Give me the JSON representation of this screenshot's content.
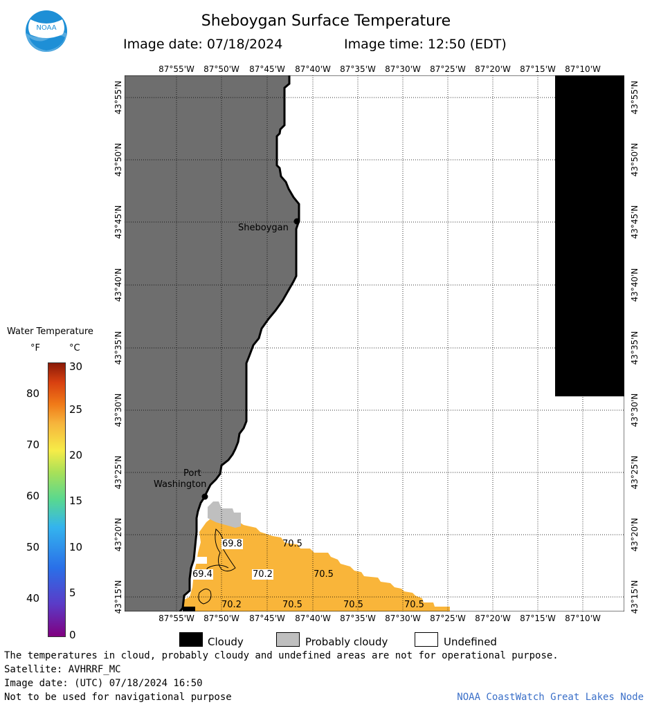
{
  "header": {
    "title": "Sheboygan Surface Temperature",
    "image_date": "Image date: 07/18/2024",
    "image_time": "Image time: 12:50 (EDT)"
  },
  "logo": {
    "text": "NOAA"
  },
  "map": {
    "lon_labels_top": [
      "87°55'W",
      "87°50'W",
      "87°45'W",
      "87°40'W",
      "87°35'W",
      "87°30'W",
      "87°25'W",
      "87°20'W",
      "87°15'W",
      "87°10'W"
    ],
    "lon_labels_bottom": [
      "87°55'W",
      "87°50'W",
      "87°45'W",
      "87°40'W",
      "87°35'W",
      "87°30'W",
      "87°25'W",
      "87°20'W",
      "87°15'W",
      "87°10'W"
    ],
    "lat_labels": [
      "43°55'N",
      "43°50'N",
      "43°45'N",
      "43°40'N",
      "43°35'N",
      "43°30'N",
      "43°25'N",
      "43°20'N",
      "43°15'N"
    ],
    "cities": {
      "sheboygan": "Sheboygan",
      "port_line1": "Port",
      "port_line2": "Washington"
    },
    "temps": [
      "69.8",
      "70.5",
      "69.4",
      "70.2",
      "70.5",
      "70.2",
      "70.5",
      "70.5",
      "70.5"
    ],
    "colors": {
      "land": "#6e6e6e",
      "cloudy": "#000000",
      "probably_cloudy": "#bfbfbf",
      "water_warm": "#f9b53a",
      "undefined": "#ffffff"
    }
  },
  "legend": {
    "title": "Water Temperature",
    "unit_f": "°F",
    "unit_c": "°C",
    "f_ticks": [
      "80",
      "70",
      "60",
      "50",
      "40"
    ],
    "c_ticks": [
      "30",
      "25",
      "20",
      "15",
      "10",
      "5",
      "0"
    ],
    "cloudy": "Cloudy",
    "probably_cloudy": "Probably cloudy",
    "undefined": "Undefined"
  },
  "footer": {
    "line1": "The temperatures in cloud, probably cloudy and undefined areas are not for operational purpose.",
    "line2": "Satellite: AVHRRF_MC",
    "line3": "Image date: (UTC) 07/18/2024  16:50",
    "line4": "Not to be used for navigational purpose",
    "credit": "NOAA CoastWatch Great Lakes Node"
  }
}
